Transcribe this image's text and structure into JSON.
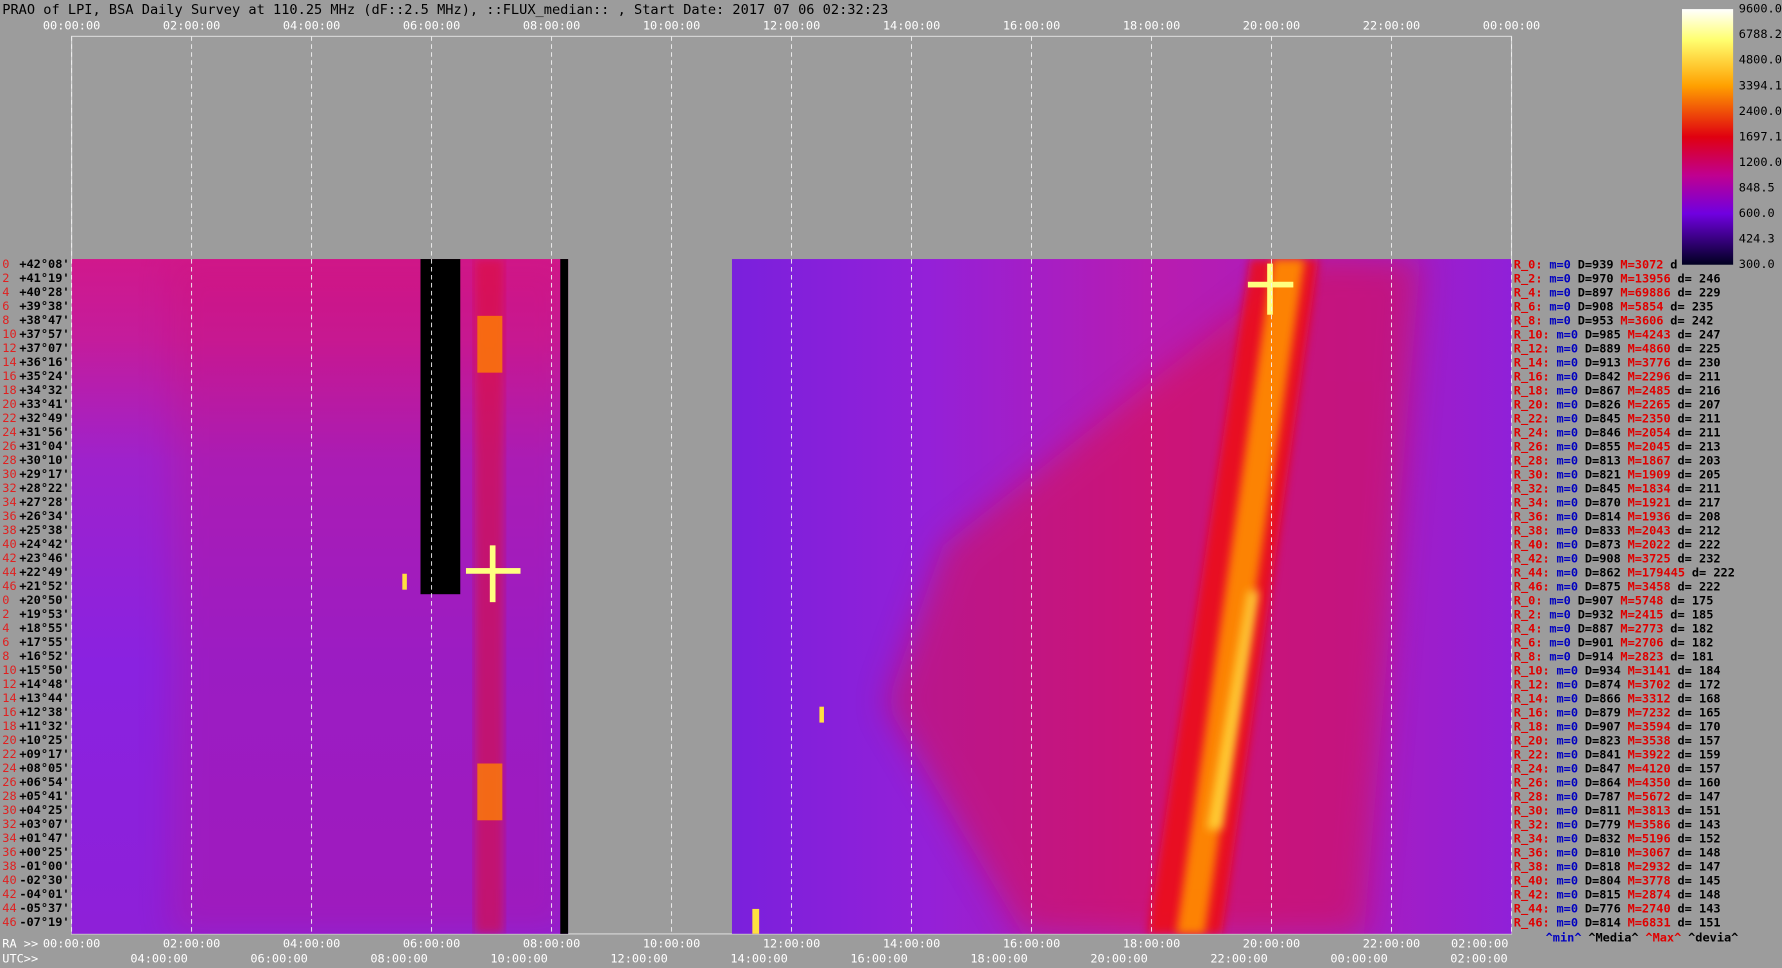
{
  "title": "PRAO of LPI, BSA Daily Survey at 110.25 MHz (dF::2.5 MHz), ::FLUX_median:: , Start Date: 2017 07 06 02:32:23",
  "time_axis_top": [
    "00:00:00",
    "02:00:00",
    "04:00:00",
    "06:00:00",
    "08:00:00",
    "10:00:00",
    "12:00:00",
    "14:00:00",
    "16:00:00",
    "18:00:00",
    "20:00:00",
    "22:00:00",
    "00:00:00"
  ],
  "ra_axis": {
    "prefix": "RA >>",
    "labels": [
      "00:00:00",
      "02:00:00",
      "04:00:00",
      "06:00:00",
      "08:00:00",
      "10:00:00",
      "12:00:00",
      "14:00:00",
      "16:00:00",
      "18:00:00",
      "20:00:00",
      "22:00:00",
      "02:00:00"
    ]
  },
  "utc_axis": {
    "prefix": "UTC>>",
    "labels": [
      "04:00:00",
      "06:00:00",
      "08:00:00",
      "10:00:00",
      "12:00:00",
      "14:00:00",
      "16:00:00",
      "18:00:00",
      "20:00:00",
      "22:00:00",
      "00:00:00",
      "02:00:00"
    ]
  },
  "rows": [
    {
      "index": "0",
      "dec": "+42°08'"
    },
    {
      "index": "2",
      "dec": "+41°19'"
    },
    {
      "index": "4",
      "dec": "+40°28'"
    },
    {
      "index": "6",
      "dec": "+39°38'"
    },
    {
      "index": "8",
      "dec": "+38°47'"
    },
    {
      "index": "10",
      "dec": "+37°57'"
    },
    {
      "index": "12",
      "dec": "+37°07'"
    },
    {
      "index": "14",
      "dec": "+36°16'"
    },
    {
      "index": "16",
      "dec": "+35°24'"
    },
    {
      "index": "18",
      "dec": "+34°32'"
    },
    {
      "index": "20",
      "dec": "+33°41'"
    },
    {
      "index": "22",
      "dec": "+32°49'"
    },
    {
      "index": "24",
      "dec": "+31°56'"
    },
    {
      "index": "26",
      "dec": "+31°04'"
    },
    {
      "index": "28",
      "dec": "+30°10'"
    },
    {
      "index": "30",
      "dec": "+29°17'"
    },
    {
      "index": "32",
      "dec": "+28°22'"
    },
    {
      "index": "34",
      "dec": "+27°28'"
    },
    {
      "index": "36",
      "dec": "+26°34'"
    },
    {
      "index": "38",
      "dec": "+25°38'"
    },
    {
      "index": "40",
      "dec": "+24°42'"
    },
    {
      "index": "42",
      "dec": "+23°46'"
    },
    {
      "index": "44",
      "dec": "+22°49'"
    },
    {
      "index": "46",
      "dec": "+21°52'"
    },
    {
      "index": "0",
      "dec": "+20°50'"
    },
    {
      "index": "2",
      "dec": "+19°53'"
    },
    {
      "index": "4",
      "dec": "+18°55'"
    },
    {
      "index": "6",
      "dec": "+17°55'"
    },
    {
      "index": "8",
      "dec": "+16°52'"
    },
    {
      "index": "10",
      "dec": "+15°50'"
    },
    {
      "index": "12",
      "dec": "+14°48'"
    },
    {
      "index": "14",
      "dec": "+13°44'"
    },
    {
      "index": "16",
      "dec": "+12°38'"
    },
    {
      "index": "18",
      "dec": "+11°32'"
    },
    {
      "index": "20",
      "dec": "+10°25'"
    },
    {
      "index": "22",
      "dec": "+09°17'"
    },
    {
      "index": "24",
      "dec": "+08°05'"
    },
    {
      "index": "26",
      "dec": "+06°54'"
    },
    {
      "index": "28",
      "dec": "+05°41'"
    },
    {
      "index": "30",
      "dec": "+04°25'"
    },
    {
      "index": "32",
      "dec": "+03°07'"
    },
    {
      "index": "34",
      "dec": "+01°47'"
    },
    {
      "index": "36",
      "dec": "+00°25'"
    },
    {
      "index": "38",
      "dec": "-01°00'"
    },
    {
      "index": "40",
      "dec": "-02°30'"
    },
    {
      "index": "42",
      "dec": "-04°01'"
    },
    {
      "index": "44",
      "dec": "-05°37'"
    },
    {
      "index": "46",
      "dec": "-07°19'"
    }
  ],
  "stats": [
    [
      "R_0:",
      "m=0",
      "D=939",
      "M=3072",
      "d"
    ],
    [
      "R_2:",
      "m=0",
      "D=970",
      "M=13956",
      "d= 246"
    ],
    [
      "R_4:",
      "m=0",
      "D=897",
      "M=69886",
      "d= 229"
    ],
    [
      "R_6:",
      "m=0",
      "D=908",
      "M=5854",
      "d= 235"
    ],
    [
      "R_8:",
      "m=0",
      "D=953",
      "M=3606",
      "d= 242"
    ],
    [
      "R_10:",
      "m=0",
      "D=985",
      "M=4243",
      "d= 247"
    ],
    [
      "R_12:",
      "m=0",
      "D=889",
      "M=4860",
      "d= 225"
    ],
    [
      "R_14:",
      "m=0",
      "D=913",
      "M=3776",
      "d= 230"
    ],
    [
      "R_16:",
      "m=0",
      "D=842",
      "M=2296",
      "d= 211"
    ],
    [
      "R_18:",
      "m=0",
      "D=867",
      "M=2485",
      "d= 216"
    ],
    [
      "R_20:",
      "m=0",
      "D=826",
      "M=2265",
      "d= 207"
    ],
    [
      "R_22:",
      "m=0",
      "D=845",
      "M=2350",
      "d= 211"
    ],
    [
      "R_24:",
      "m=0",
      "D=846",
      "M=2054",
      "d= 211"
    ],
    [
      "R_26:",
      "m=0",
      "D=855",
      "M=2045",
      "d= 213"
    ],
    [
      "R_28:",
      "m=0",
      "D=813",
      "M=1867",
      "d= 203"
    ],
    [
      "R_30:",
      "m=0",
      "D=821",
      "M=1909",
      "d= 205"
    ],
    [
      "R_32:",
      "m=0",
      "D=845",
      "M=1834",
      "d= 211"
    ],
    [
      "R_34:",
      "m=0",
      "D=870",
      "M=1921",
      "d= 217"
    ],
    [
      "R_36:",
      "m=0",
      "D=814",
      "M=1936",
      "d= 208"
    ],
    [
      "R_38:",
      "m=0",
      "D=833",
      "M=2043",
      "d= 212"
    ],
    [
      "R_40:",
      "m=0",
      "D=873",
      "M=2022",
      "d= 222"
    ],
    [
      "R_42:",
      "m=0",
      "D=908",
      "M=3725",
      "d= 232"
    ],
    [
      "R_44:",
      "m=0",
      "D=862",
      "M=179445",
      "d= 222"
    ],
    [
      "R_46:",
      "m=0",
      "D=875",
      "M=3458",
      "d= 222"
    ],
    [
      "R_0:",
      "m=0",
      "D=907",
      "M=5748",
      "d= 175"
    ],
    [
      "R_2:",
      "m=0",
      "D=932",
      "M=2415",
      "d= 185"
    ],
    [
      "R_4:",
      "m=0",
      "D=887",
      "M=2773",
      "d= 182"
    ],
    [
      "R_6:",
      "m=0",
      "D=901",
      "M=2706",
      "d= 182"
    ],
    [
      "R_8:",
      "m=0",
      "D=914",
      "M=2823",
      "d= 181"
    ],
    [
      "R_10:",
      "m=0",
      "D=934",
      "M=3141",
      "d= 184"
    ],
    [
      "R_12:",
      "m=0",
      "D=874",
      "M=3702",
      "d= 172"
    ],
    [
      "R_14:",
      "m=0",
      "D=866",
      "M=3312",
      "d= 168"
    ],
    [
      "R_16:",
      "m=0",
      "D=879",
      "M=7232",
      "d= 165"
    ],
    [
      "R_18:",
      "m=0",
      "D=907",
      "M=3594",
      "d= 170"
    ],
    [
      "R_20:",
      "m=0",
      "D=823",
      "M=3538",
      "d= 157"
    ],
    [
      "R_22:",
      "m=0",
      "D=841",
      "M=3922",
      "d= 159"
    ],
    [
      "R_24:",
      "m=0",
      "D=847",
      "M=4120",
      "d= 157"
    ],
    [
      "R_26:",
      "m=0",
      "D=864",
      "M=4350",
      "d= 160"
    ],
    [
      "R_28:",
      "m=0",
      "D=787",
      "M=5672",
      "d= 147"
    ],
    [
      "R_30:",
      "m=0",
      "D=811",
      "M=3813",
      "d= 151"
    ],
    [
      "R_32:",
      "m=0",
      "D=779",
      "M=3586",
      "d= 143"
    ],
    [
      "R_34:",
      "m=0",
      "D=832",
      "M=5196",
      "d= 152"
    ],
    [
      "R_36:",
      "m=0",
      "D=810",
      "M=3067",
      "d= 148"
    ],
    [
      "R_38:",
      "m=0",
      "D=818",
      "M=2932",
      "d= 147"
    ],
    [
      "R_40:",
      "m=0",
      "D=804",
      "M=3778",
      "d= 145"
    ],
    [
      "R_42:",
      "m=0",
      "D=815",
      "M=2874",
      "d= 148"
    ],
    [
      "R_44:",
      "m=0",
      "D=776",
      "M=2740",
      "d= 143"
    ],
    [
      "R_46:",
      "m=0",
      "D=814",
      "M=6831",
      "d= 151"
    ]
  ],
  "colorbar": [
    "9600.0",
    "6788.2",
    "4800.0",
    "3394.1",
    "2400.0",
    "1697.1",
    "1200.0",
    "848.5",
    "600.0",
    "424.3",
    "300.0"
  ],
  "legend": [
    "^min^",
    "^Media^",
    "^Max^",
    "^devia^"
  ]
}
